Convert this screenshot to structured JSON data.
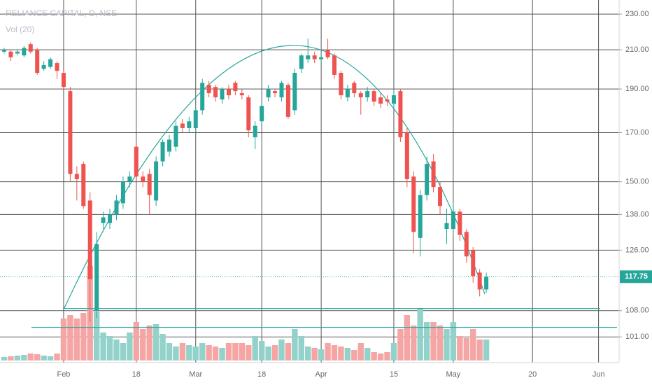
{
  "chart_data": {
    "type": "candlestick",
    "title": "RELIANCE CAPITAL, D, NSE",
    "subtitle": "Vol (20)",
    "log_scale": true,
    "grid": true,
    "up_color": "#26a69a",
    "down_color": "#ef5350",
    "volume_up_color": "#93d2ca",
    "volume_down_color": "#f5a6a4",
    "ylim": [
      94.6,
      238.4
    ],
    "yticks": [
      {
        "value": 230,
        "label": "230.00"
      },
      {
        "value": 210,
        "label": "210.00"
      },
      {
        "value": 190,
        "label": "190.00"
      },
      {
        "value": 170,
        "label": "170.00"
      },
      {
        "value": 150,
        "label": "150.00"
      },
      {
        "value": 138,
        "label": "138.00"
      },
      {
        "value": 126,
        "label": "126.00"
      },
      {
        "value": 108,
        "label": "108.00"
      },
      {
        "value": 101,
        "label": "101.00"
      }
    ],
    "horizontal_lines": [
      108.6,
      103.5
    ],
    "categories": [
      null,
      null,
      null,
      null,
      null,
      null,
      null,
      null,
      null,
      "Feb",
      null,
      null,
      null,
      null,
      null,
      null,
      null,
      null,
      null,
      null,
      "18",
      null,
      null,
      null,
      null,
      null,
      null,
      null,
      null,
      "Mar",
      null,
      null,
      null,
      null,
      null,
      null,
      null,
      null,
      null,
      "18",
      null,
      null,
      null,
      null,
      null,
      null,
      null,
      null,
      "Apr",
      null,
      null,
      null,
      null,
      null,
      null,
      null,
      null,
      null,
      null,
      "15",
      null,
      null,
      null,
      null,
      null,
      null,
      null,
      null,
      "May",
      null,
      null,
      null,
      null,
      null,
      null,
      null,
      null,
      null,
      null,
      null,
      "20",
      null,
      null,
      null,
      null,
      null,
      null,
      null,
      null,
      null,
      "Jun",
      null
    ],
    "open": [
      209,
      209,
      208,
      207,
      213,
      210,
      200,
      201,
      203,
      198,
      189,
      153,
      157,
      143,
      108,
      135,
      135,
      138,
      142,
      150,
      164,
      152,
      153,
      143,
      158,
      162,
      164,
      174,
      172,
      172,
      180,
      192,
      191,
      185,
      190,
      193,
      188,
      186,
      168,
      175,
      186,
      189,
      186,
      192,
      180,
      200,
      205,
      207,
      205,
      210,
      207,
      198,
      186,
      193,
      188,
      186,
      189,
      186,
      185,
      183,
      189,
      170,
      152,
      130,
      145,
      158,
      148,
      133,
      133,
      139,
      132,
      126,
      119,
      114,
      null,
      null,
      null,
      null,
      null,
      null,
      null,
      null,
      null,
      null,
      null,
      null,
      null,
      null,
      null,
      null,
      null,
      null
    ],
    "high": [
      211,
      210,
      210,
      212,
      214,
      211,
      204,
      206,
      204,
      199,
      191,
      156,
      158,
      146,
      132,
      139,
      140,
      145,
      152,
      154,
      166,
      154,
      155,
      160,
      167,
      169,
      175,
      176,
      177,
      182,
      195,
      194,
      192,
      191,
      192,
      194,
      190,
      187,
      175,
      184,
      192,
      190,
      194,
      193,
      200,
      208,
      216,
      209,
      208,
      216,
      208,
      199,
      192,
      194,
      189,
      191,
      190,
      188,
      187,
      190,
      190,
      172,
      154,
      147,
      160,
      161,
      150,
      140,
      142,
      140,
      133,
      127,
      120,
      119,
      null,
      null,
      null,
      null,
      null,
      null,
      null,
      null,
      null,
      null,
      null,
      null,
      null,
      null,
      null,
      null,
      null,
      null
    ],
    "low": [
      208,
      204,
      207,
      206,
      208,
      197,
      199,
      200,
      195,
      190,
      150,
      143,
      140,
      105,
      106,
      133,
      133,
      136,
      140,
      148,
      150,
      148,
      138,
      141,
      156,
      160,
      162,
      170,
      170,
      170,
      178,
      186,
      184,
      183,
      185,
      187,
      185,
      168,
      163,
      173,
      184,
      186,
      184,
      176,
      178,
      198,
      203,
      203,
      203,
      205,
      195,
      185,
      184,
      186,
      178,
      184,
      182,
      181,
      182,
      181,
      166,
      148,
      125,
      124,
      143,
      146,
      138,
      128,
      131,
      129,
      122,
      116,
      112,
      113,
      null,
      null,
      null,
      null,
      null,
      null,
      null,
      null,
      null,
      null,
      null,
      null,
      null,
      null,
      null,
      null,
      null,
      null
    ],
    "close": [
      210,
      206,
      209,
      211,
      209,
      198,
      202,
      205,
      199,
      191,
      153,
      151,
      141,
      117,
      128,
      137,
      138,
      143,
      150,
      152,
      152,
      150,
      145,
      158,
      166,
      167,
      173,
      172,
      175,
      180,
      193,
      188,
      186,
      190,
      187,
      189,
      187,
      171,
      173,
      182,
      190,
      188,
      193,
      177,
      198,
      207,
      207,
      205,
      206,
      206,
      197,
      187,
      190,
      188,
      186,
      189,
      184,
      183,
      184,
      187,
      168,
      151,
      132,
      145,
      157,
      148,
      141,
      135,
      139,
      131,
      124,
      118,
      114,
      117.75,
      null,
      null,
      null,
      null,
      null,
      null,
      null,
      null,
      null,
      null,
      null,
      null,
      null,
      null,
      null,
      null,
      null,
      null
    ],
    "volume": [
      5,
      6,
      7,
      8,
      10,
      9,
      7,
      6,
      10,
      60,
      65,
      60,
      68,
      135,
      70,
      40,
      35,
      30,
      25,
      40,
      55,
      45,
      50,
      52,
      38,
      25,
      20,
      25,
      22,
      20,
      25,
      22,
      20,
      18,
      25,
      25,
      25,
      22,
      35,
      28,
      20,
      22,
      30,
      25,
      45,
      35,
      20,
      18,
      16,
      25,
      22,
      20,
      18,
      15,
      25,
      18,
      12,
      10,
      12,
      25,
      45,
      65,
      50,
      75,
      55,
      55,
      50,
      45,
      55,
      35,
      32,
      45,
      30,
      30,
      null,
      null,
      null,
      null,
      null,
      null,
      null,
      null,
      null,
      null,
      null,
      null,
      null,
      null,
      null,
      null,
      null,
      null
    ]
  }
}
